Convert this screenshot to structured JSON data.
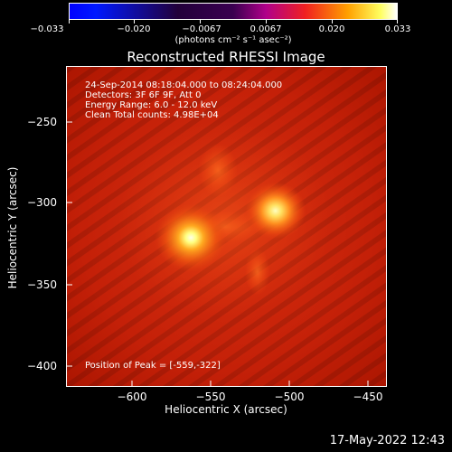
{
  "colorbar": {
    "tick_labels": [
      "−0.033",
      "−0.020",
      "−0.0067",
      "0.0067",
      "0.020",
      "0.033"
    ],
    "units": "(photons cm⁻² s⁻¹ asec⁻²)"
  },
  "title": "Reconstructed RHESSI Image",
  "info": {
    "time": "24-Sep-2014 08:18:04.000 to 08:24:04.000",
    "detectors": "Detectors: 3F 6F 9F, Att 0",
    "energy": "Energy Range: 6.0 - 12.0 keV",
    "clean": "Clean    Total counts: 4.98E+04",
    "peak": "Position of Peak = [-559,-322]"
  },
  "axes": {
    "xlabel": "Heliocentric X (arcsec)",
    "ylabel": "Heliocentric Y (arcsec)",
    "xticks": [
      "−600",
      "−550",
      "−500",
      "−450"
    ],
    "yticks": [
      "−250",
      "−300",
      "−350",
      "−400"
    ]
  },
  "timestamp": "17-May-2022 12:43"
}
